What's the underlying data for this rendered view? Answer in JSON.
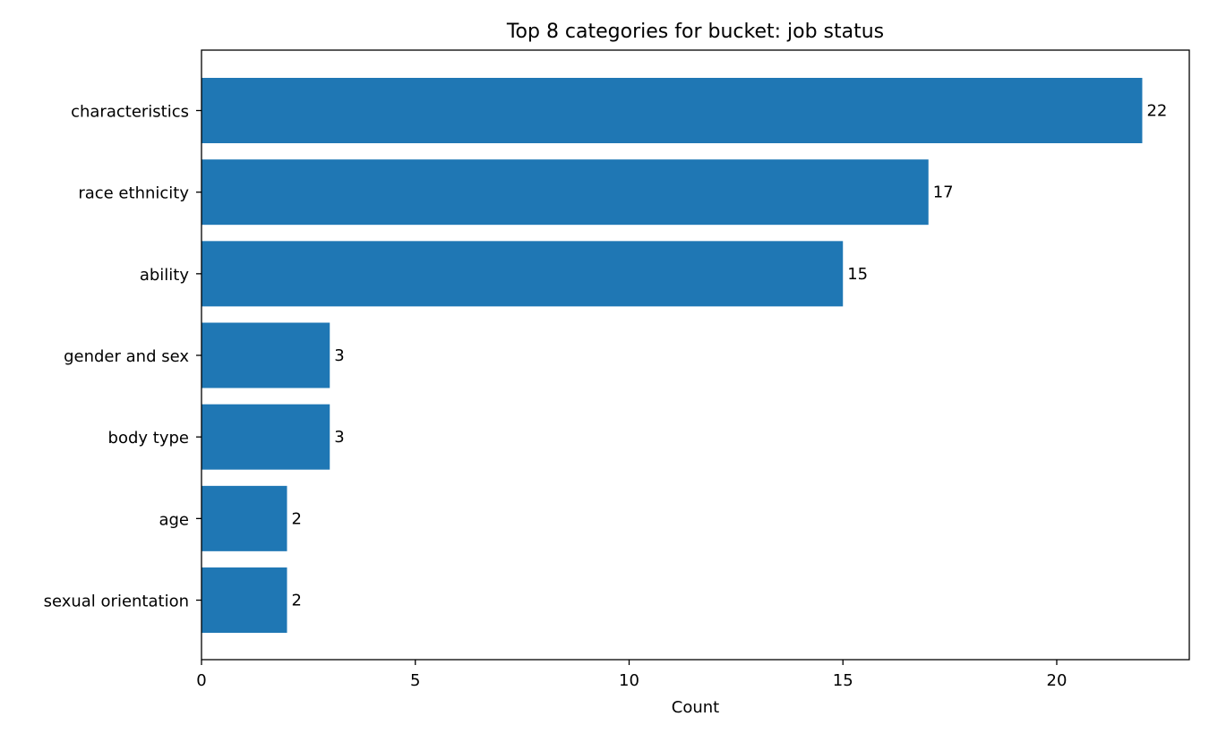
{
  "chart_data": {
    "type": "bar",
    "orientation": "horizontal",
    "title": "Top 8 categories for bucket: job status",
    "xlabel": "Count",
    "ylabel": "",
    "categories": [
      "characteristics",
      "race ethnicity",
      "ability",
      "gender and sex",
      "body type",
      "age",
      "sexual orientation"
    ],
    "values": [
      22,
      17,
      15,
      3,
      3,
      2,
      2
    ],
    "data_labels": [
      "22",
      "17",
      "15",
      "3",
      "3",
      "2",
      "2"
    ],
    "xlim": [
      0,
      23.1
    ],
    "xticks": [
      0,
      5,
      10,
      15,
      20
    ],
    "xtick_labels": [
      "0",
      "5",
      "10",
      "15",
      "20"
    ],
    "grid": false,
    "legend": "none",
    "bar_color": "#1f77b4"
  }
}
